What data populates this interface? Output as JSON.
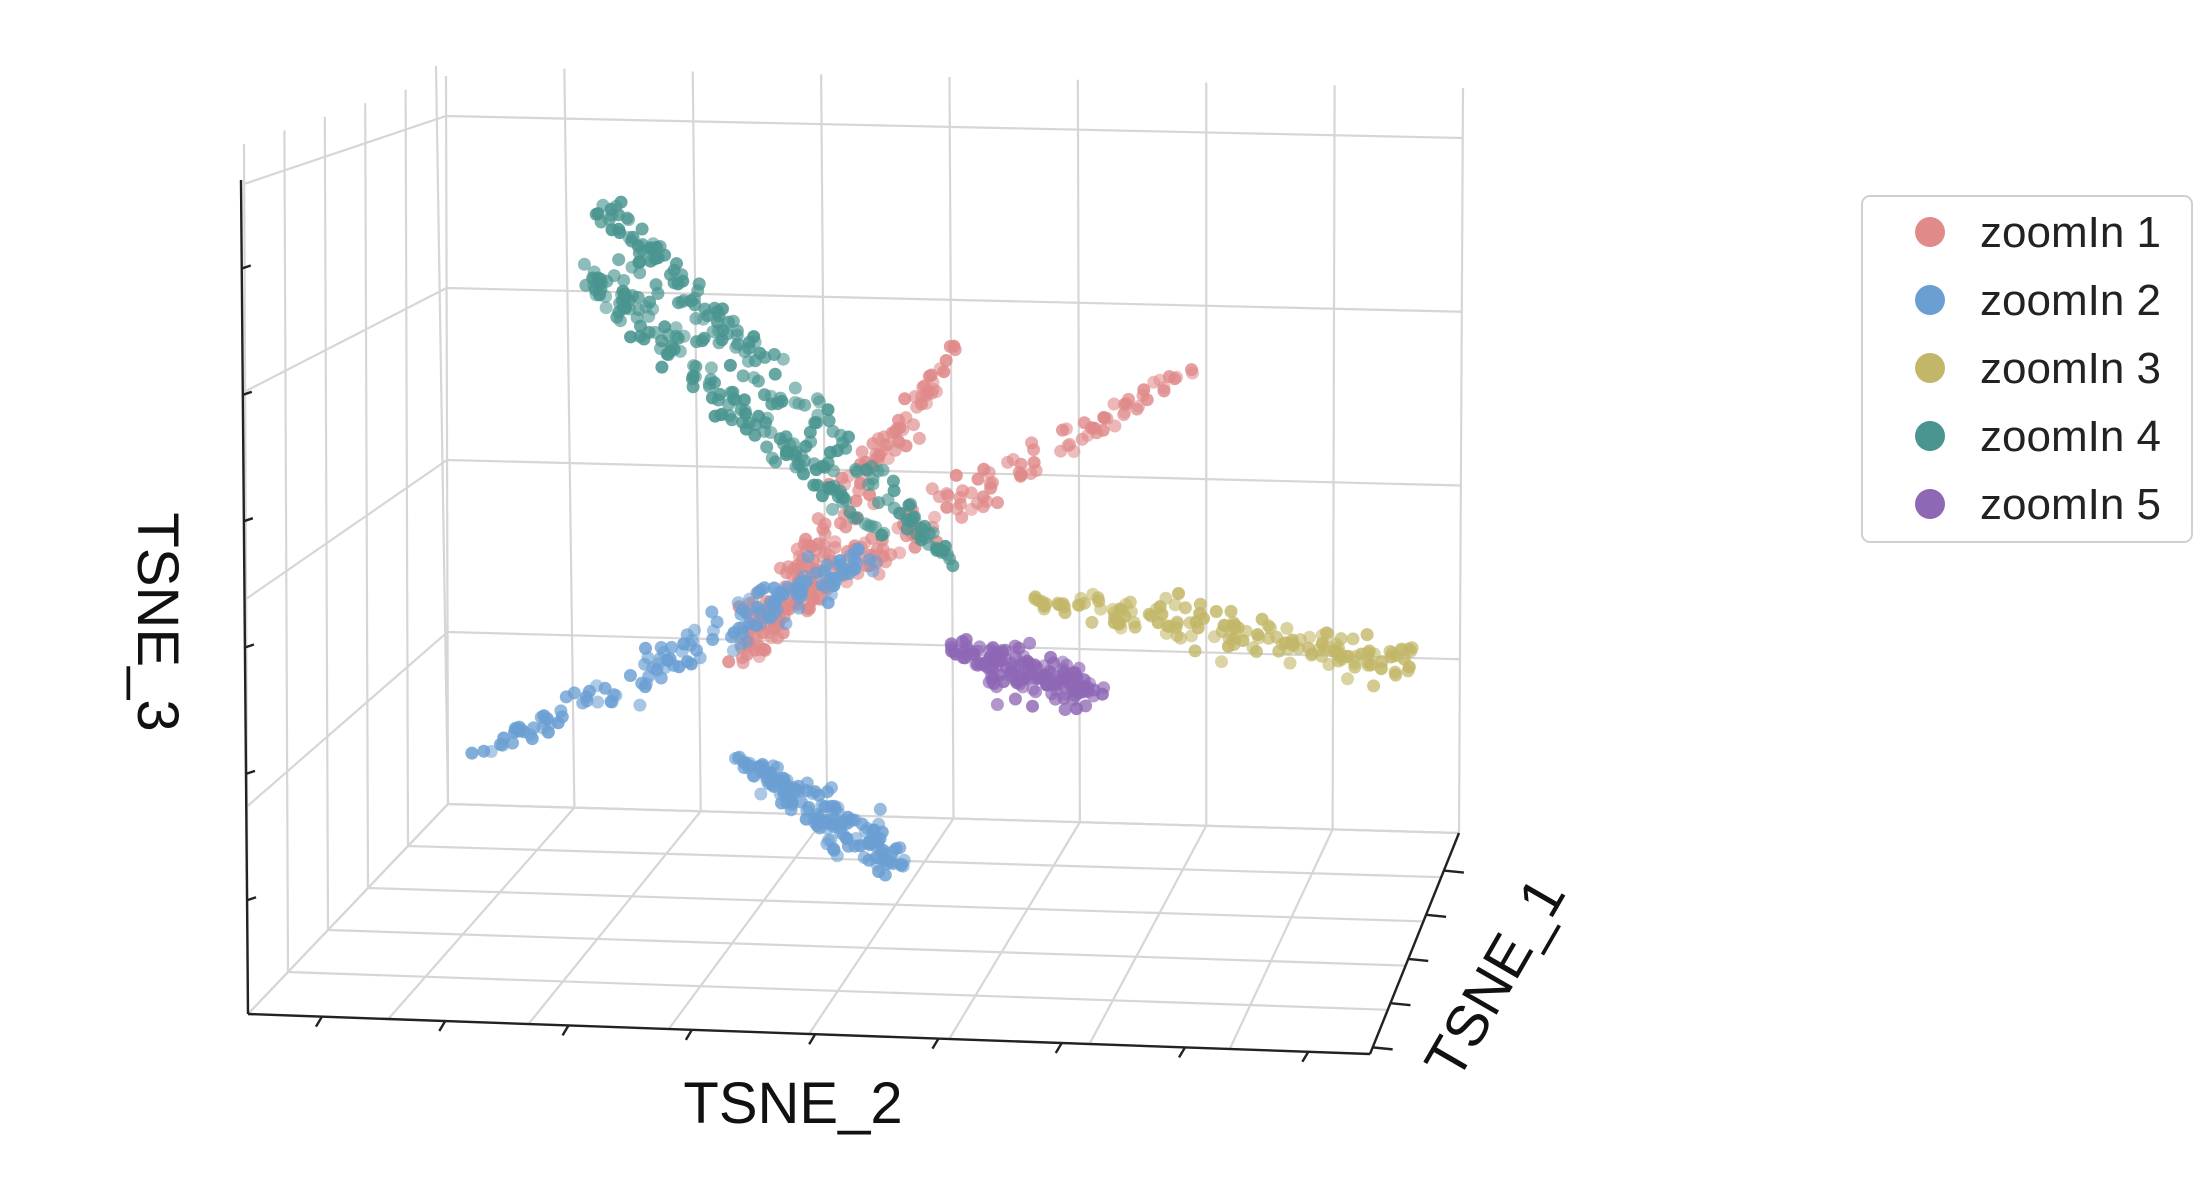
{
  "chart_data": {
    "type": "scatter",
    "projection": "3d",
    "title": "",
    "xlabel": "TSNE_1",
    "ylabel": "TSNE_2",
    "zlabel": "TSNE_3",
    "grid": true,
    "tick_labels_visible": false,
    "legend_position": "right",
    "series": [
      {
        "name": "zoomIn 1",
        "color": "#e08a8a",
        "description": "two thin arms extending upward to the upper right of center",
        "arms": [
          {
            "tsne_2": [
              0.7,
              0.46
            ],
            "tsne_3": [
              0.78,
              0.33
            ]
          },
          {
            "tsne_2": [
              0.96,
              0.46
            ],
            "tsne_3": [
              0.74,
              0.38
            ]
          }
        ]
      },
      {
        "name": "zoomIn 2",
        "color": "#6b9fd3",
        "description": "one broad arm to the left and one long arm downward from center",
        "arms": [
          {
            "tsne_2": [
              0.16,
              0.6
            ],
            "tsne_3": [
              0.2,
              0.48
            ]
          },
          {
            "tsne_2": [
              0.45,
              0.63
            ],
            "tsne_3": [
              0.2,
              0.05
            ]
          }
        ]
      },
      {
        "name": "zoomIn 3",
        "color": "#c2b768",
        "description": "one elongated arm extending to the right of center",
        "arms": [
          {
            "tsne_2": [
              0.78,
              1.2
            ],
            "tsne_3": [
              0.42,
              0.33
            ]
          }
        ]
      },
      {
        "name": "zoomIn 4",
        "color": "#4a9590",
        "description": "two parallel arms extending to the upper left of center",
        "arms": [
          {
            "tsne_2": [
              0.7,
              0.3
            ],
            "tsne_3": [
              0.46,
              0.96
            ]
          },
          {
            "tsne_2": [
              0.62,
              0.28
            ],
            "tsne_3": [
              0.5,
              0.88
            ]
          }
        ]
      },
      {
        "name": "zoomIn 5",
        "color": "#8e67b5",
        "description": "compact wedge-shaped cluster just right of center",
        "arms": [
          {
            "tsne_2": [
              0.69,
              0.85
            ],
            "tsne_3": [
              0.35,
              0.29
            ]
          }
        ]
      }
    ]
  }
}
